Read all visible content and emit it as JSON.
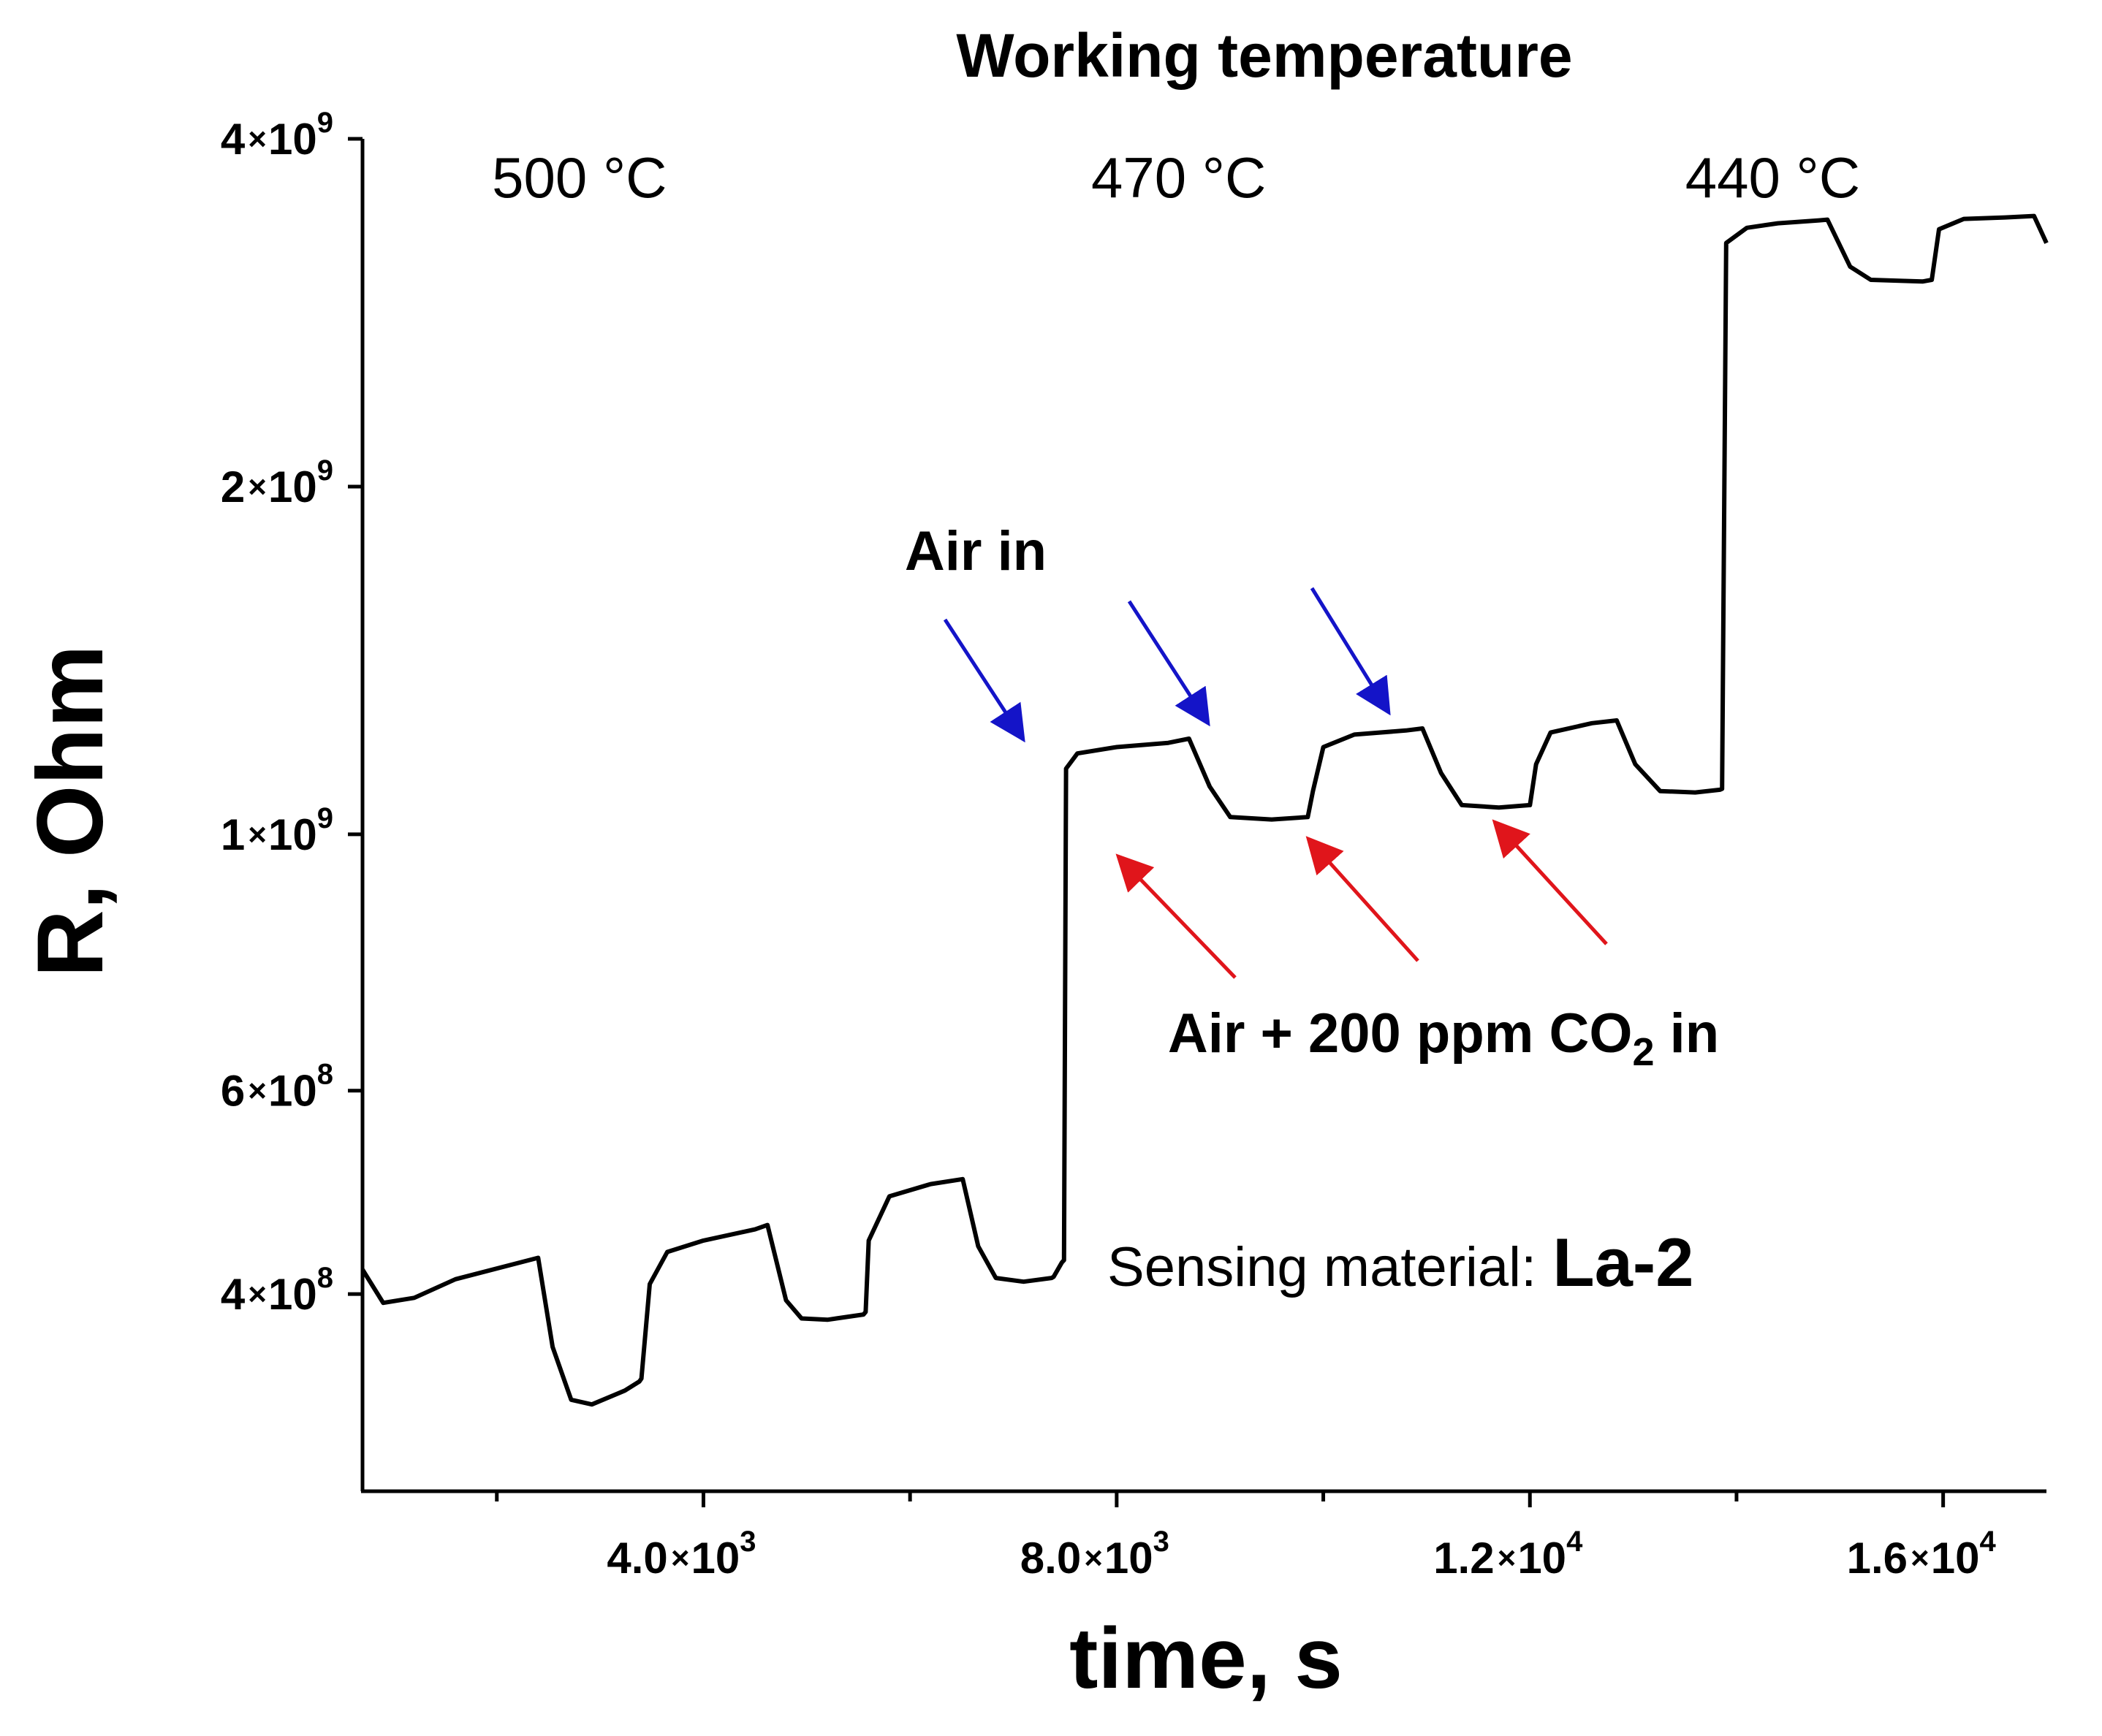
{
  "chart_data": {
    "type": "line",
    "title": "Working temperature",
    "xlabel": "time, s",
    "ylabel": "R, Ohm",
    "yscale": "log",
    "xlim": [
      700,
      17000
    ],
    "ylim": [
      270000000,
      4000000000
    ],
    "x_ticks": [
      {
        "value": 4000,
        "mantissa": "4.0",
        "exponent": "3"
      },
      {
        "value": 8000,
        "mantissa": "8.0",
        "exponent": "3"
      },
      {
        "value": 12000,
        "mantissa": "1.2",
        "exponent": "4"
      },
      {
        "value": 16000,
        "mantissa": "1.6",
        "exponent": "4"
      }
    ],
    "x_minor_ticks": [
      2000,
      6000,
      10000,
      14000
    ],
    "y_ticks": [
      {
        "value": 400000000,
        "mantissa": "4",
        "exponent": "8"
      },
      {
        "value": 600000000,
        "mantissa": "6",
        "exponent": "8"
      },
      {
        "value": 1000000000,
        "mantissa": "1",
        "exponent": "9"
      },
      {
        "value": 2000000000,
        "mantissa": "2",
        "exponent": "9"
      },
      {
        "value": 4000000000,
        "mantissa": "4",
        "exponent": "9"
      }
    ],
    "times_symbol": "×",
    "temperature_labels": [
      {
        "text": "500 °C",
        "x": 2800
      },
      {
        "text": "470 °C",
        "x": 8600
      },
      {
        "text": "440 °C",
        "x": 14350
      }
    ],
    "series": [
      {
        "name": "La-2",
        "color": "#000000",
        "points": [
          [
            700,
            420000000
          ],
          [
            900,
            393000000
          ],
          [
            1200,
            397000000
          ],
          [
            1600,
            412000000
          ],
          [
            2400,
            430000000
          ],
          [
            2540,
            360000000
          ],
          [
            2720,
            324000000
          ],
          [
            2920,
            321000000
          ],
          [
            3240,
            330000000
          ],
          [
            3380,
            336000000
          ],
          [
            3400,
            338000000
          ],
          [
            3480,
            408000000
          ],
          [
            3650,
            435000000
          ],
          [
            4000,
            445000000
          ],
          [
            4500,
            455000000
          ],
          [
            4620,
            459000000
          ],
          [
            4800,
            395000000
          ],
          [
            4950,
            381000000
          ],
          [
            5200,
            380000000
          ],
          [
            5550,
            384000000
          ],
          [
            5570,
            386000000
          ],
          [
            5600,
            445000000
          ],
          [
            5800,
            486000000
          ],
          [
            6200,
            498000000
          ],
          [
            6510,
            503000000
          ],
          [
            6660,
            440000000
          ],
          [
            6830,
            413000000
          ],
          [
            7100,
            410000000
          ],
          [
            7370,
            413000000
          ],
          [
            7390,
            414000000
          ],
          [
            7470,
            426000000
          ],
          [
            7490,
            428000000
          ],
          [
            7510,
            1140000000
          ],
          [
            7620,
            1175000000
          ],
          [
            8000,
            1190000000
          ],
          [
            8500,
            1200000000
          ],
          [
            8700,
            1210000000
          ],
          [
            8900,
            1100000000
          ],
          [
            9100,
            1035000000
          ],
          [
            9500,
            1030000000
          ],
          [
            9850,
            1035000000
          ],
          [
            9900,
            1090000000
          ],
          [
            10000,
            1190000000
          ],
          [
            10300,
            1220000000
          ],
          [
            10800,
            1230000000
          ],
          [
            10960,
            1235000000
          ],
          [
            11140,
            1130000000
          ],
          [
            11340,
            1060000000
          ],
          [
            11700,
            1055000000
          ],
          [
            12000,
            1060000000
          ],
          [
            12060,
            1150000000
          ],
          [
            12200,
            1225000000
          ],
          [
            12600,
            1248000000
          ],
          [
            12840,
            1255000000
          ],
          [
            13020,
            1150000000
          ],
          [
            13260,
            1090000000
          ],
          [
            13600,
            1087000000
          ],
          [
            13840,
            1093000000
          ],
          [
            13860,
            1095000000
          ],
          [
            13900,
            3250000000
          ],
          [
            14100,
            3350000000
          ],
          [
            14400,
            3380000000
          ],
          [
            14800,
            3400000000
          ],
          [
            14880,
            3405000000
          ],
          [
            15100,
            3100000000
          ],
          [
            15300,
            3020000000
          ],
          [
            15800,
            3010000000
          ],
          [
            15890,
            3020000000
          ],
          [
            15960,
            3340000000
          ],
          [
            16200,
            3410000000
          ],
          [
            16600,
            3420000000
          ],
          [
            16880,
            3430000000
          ],
          [
            17000,
            3250000000
          ]
        ]
      }
    ],
    "annotations": {
      "sensing_material_label": "Sensing material:",
      "sensing_material_value": "La-2",
      "air_in": {
        "text": "Air in",
        "color": "#1414c8"
      },
      "co2_in": {
        "prefix": "Air + 200 ppm CO",
        "subscript": "2",
        "suffix": " in",
        "color": "#e0151b"
      }
    }
  }
}
